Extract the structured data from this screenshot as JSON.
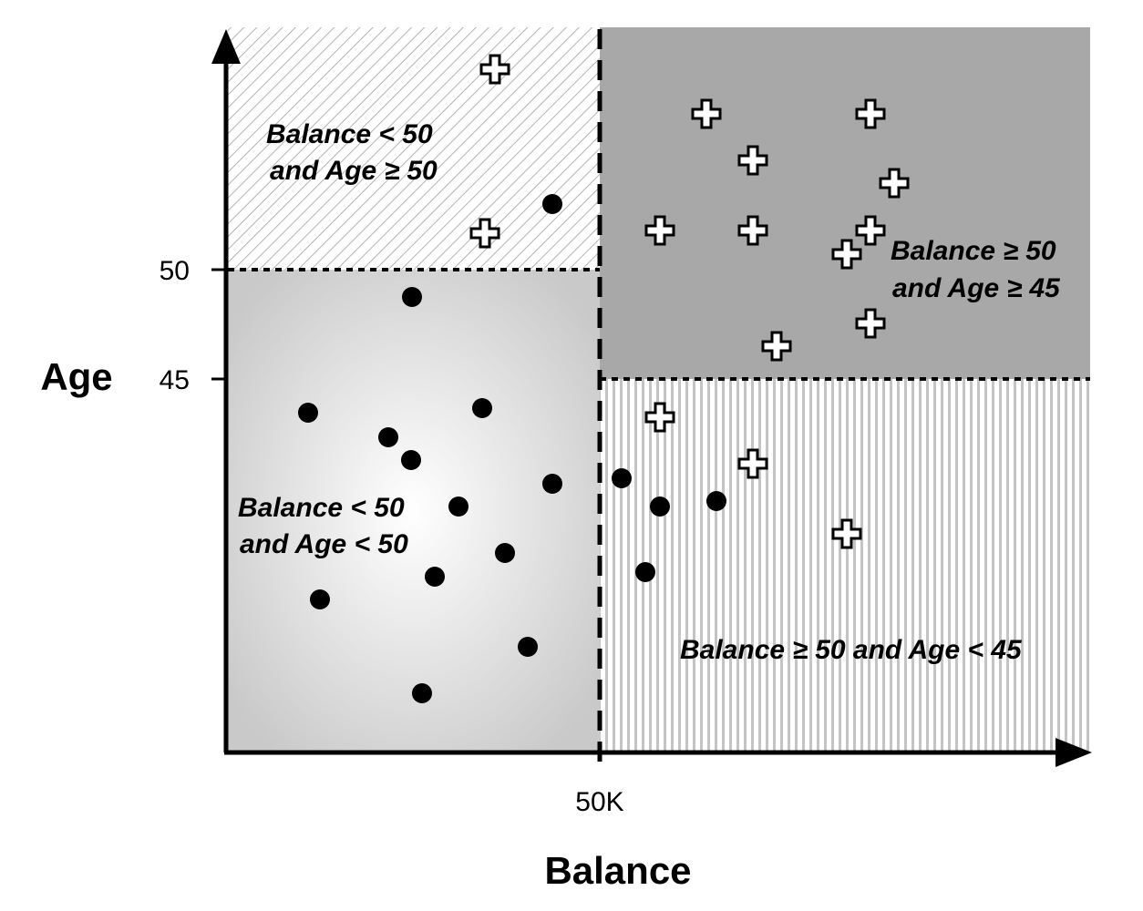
{
  "x_axis": {
    "title": "Balance",
    "threshold_label": "50K"
  },
  "y_axis": {
    "title": "Age",
    "tick_labels": [
      "50",
      "45"
    ]
  },
  "regions": [
    {
      "id": "top-left",
      "lines": [
        "Balance < 50",
        "and Age ≥ 50"
      ]
    },
    {
      "id": "top-right",
      "lines": [
        "Balance ≥ 50",
        "and Age ≥ 45"
      ]
    },
    {
      "id": "bottom-left",
      "lines": [
        "Balance < 50",
        "and Age < 50"
      ]
    },
    {
      "id": "bottom-right",
      "lines": [
        "Balance ≥ 50 and Age < 45"
      ]
    }
  ],
  "colors": {
    "top_right_fill": "#a8a8a8",
    "hatch_line": "#b3b3b3",
    "stripe_line": "#c4c4c4",
    "marker": "#000000"
  },
  "marker_types": [
    "filled-circle",
    "plus-outline"
  ]
}
